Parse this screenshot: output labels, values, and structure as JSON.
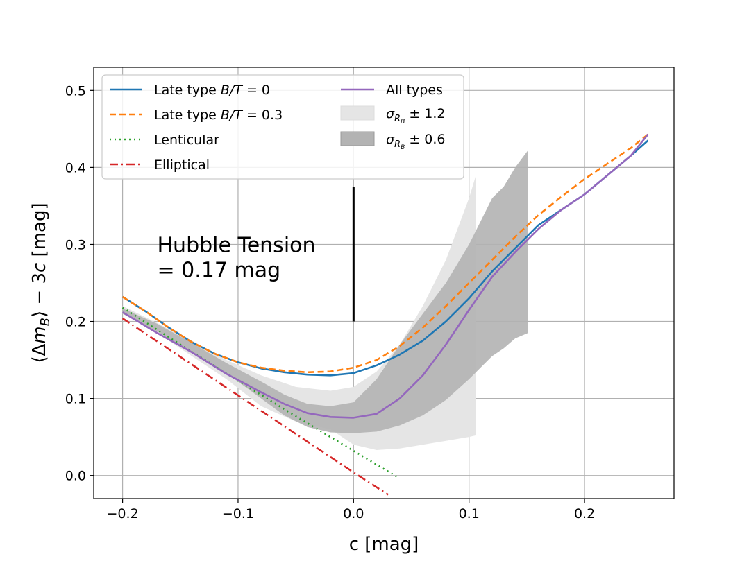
{
  "chart_data": {
    "type": "line",
    "title": "",
    "xlabel": "c [mag]",
    "ylabel_parts": [
      "⟨Δ",
      "m",
      "B",
      "⟩ − 3",
      "c",
      " [mag]"
    ],
    "xlim": [
      -0.225,
      0.2775
    ],
    "ylim": [
      -0.03,
      0.53
    ],
    "grid": true,
    "xticks": [
      -0.2,
      -0.1,
      0.0,
      0.1,
      0.2
    ],
    "xtick_labels": [
      "−0.2",
      "−0.1",
      "0.0",
      "0.1",
      "0.2"
    ],
    "yticks": [
      0.0,
      0.1,
      0.2,
      0.3,
      0.4,
      0.5
    ],
    "ytick_labels": [
      "0.0",
      "0.1",
      "0.2",
      "0.3",
      "0.4",
      "0.5"
    ],
    "legend_location": "upper-left",
    "bands": [
      {
        "name": "band_12",
        "label_parts": [
          "σ",
          "R",
          "B",
          " ± 1.2"
        ],
        "color": "#e5e5e5",
        "x": [
          -0.2,
          -0.17,
          -0.14,
          -0.11,
          -0.08,
          -0.05,
          -0.02,
          0.0,
          0.02,
          0.04,
          0.06,
          0.08,
          0.1,
          0.106
        ],
        "upper": [
          0.22,
          0.198,
          0.175,
          0.15,
          0.13,
          0.115,
          0.11,
          0.115,
          0.135,
          0.17,
          0.22,
          0.28,
          0.36,
          0.39
        ],
        "lower": [
          0.21,
          0.185,
          0.155,
          0.125,
          0.09,
          0.07,
          0.06,
          0.04,
          0.033,
          0.035,
          0.04,
          0.045,
          0.05,
          0.052
        ]
      },
      {
        "name": "band_06",
        "label_parts": [
          "σ",
          "R",
          "B",
          " ± 0.6"
        ],
        "color": "#b3b3b3",
        "x": [
          -0.2,
          -0.17,
          -0.14,
          -0.11,
          -0.08,
          -0.06,
          -0.04,
          -0.02,
          0.0,
          0.02,
          0.04,
          0.06,
          0.08,
          0.1,
          0.12,
          0.13,
          0.14,
          0.151
        ],
        "upper": [
          0.217,
          0.197,
          0.172,
          0.146,
          0.122,
          0.105,
          0.093,
          0.09,
          0.095,
          0.125,
          0.17,
          0.21,
          0.25,
          0.3,
          0.36,
          0.375,
          0.4,
          0.422
        ],
        "lower": [
          0.21,
          0.187,
          0.16,
          0.133,
          0.1,
          0.078,
          0.063,
          0.056,
          0.055,
          0.057,
          0.065,
          0.078,
          0.098,
          0.125,
          0.155,
          0.165,
          0.178,
          0.185
        ]
      }
    ],
    "series": [
      {
        "name": "late_bt0",
        "label_prefix": "Late type ",
        "label_math": "B/T",
        "label_suffix": " = 0",
        "color": "#1f77b4",
        "dash": "",
        "x": [
          -0.2,
          -0.18,
          -0.16,
          -0.14,
          -0.12,
          -0.1,
          -0.08,
          -0.06,
          -0.04,
          -0.02,
          0.0,
          0.02,
          0.04,
          0.06,
          0.08,
          0.1,
          0.12,
          0.14,
          0.16,
          0.18,
          0.2,
          0.22,
          0.24,
          0.255
        ],
        "y": [
          0.232,
          0.213,
          0.192,
          0.173,
          0.158,
          0.147,
          0.139,
          0.134,
          0.131,
          0.13,
          0.133,
          0.143,
          0.157,
          0.175,
          0.2,
          0.23,
          0.265,
          0.295,
          0.325,
          0.345,
          0.365,
          0.39,
          0.415,
          0.435
        ]
      },
      {
        "name": "late_bt03",
        "label_prefix": "Late type ",
        "label_math": "B/T",
        "label_suffix": " = 0.3",
        "color": "#ff7f0e",
        "dash": "9,5",
        "x": [
          -0.2,
          -0.18,
          -0.16,
          -0.14,
          -0.12,
          -0.1,
          -0.08,
          -0.06,
          -0.04,
          -0.02,
          0.0,
          0.02,
          0.04,
          0.06,
          0.08,
          0.1,
          0.12,
          0.14,
          0.16,
          0.18,
          0.2,
          0.22,
          0.24,
          0.255
        ],
        "y": [
          0.232,
          0.213,
          0.192,
          0.173,
          0.158,
          0.147,
          0.14,
          0.136,
          0.134,
          0.135,
          0.14,
          0.15,
          0.168,
          0.192,
          0.22,
          0.25,
          0.28,
          0.31,
          0.338,
          0.362,
          0.385,
          0.405,
          0.425,
          0.443
        ]
      },
      {
        "name": "lenticular",
        "label_prefix": "Lenticular",
        "label_math": "",
        "label_suffix": "",
        "color": "#2ca02c",
        "dash": "2,5",
        "x": [
          -0.2,
          -0.15,
          -0.1,
          -0.05,
          0.0,
          0.038
        ],
        "y": [
          0.218,
          0.17,
          0.123,
          0.077,
          0.032,
          -0.002
        ]
      },
      {
        "name": "elliptical",
        "label_prefix": "Elliptical",
        "label_math": "",
        "label_suffix": "",
        "color": "#d62728",
        "dash": "12,5,2,5",
        "x": [
          -0.2,
          -0.15,
          -0.1,
          -0.05,
          0.0,
          0.03
        ],
        "y": [
          0.204,
          0.154,
          0.104,
          0.054,
          0.004,
          -0.025
        ]
      },
      {
        "name": "all_types",
        "label_prefix": "All types",
        "label_math": "",
        "label_suffix": "",
        "color": "#9467bd",
        "dash": "",
        "x": [
          -0.2,
          -0.17,
          -0.14,
          -0.11,
          -0.08,
          -0.06,
          -0.04,
          -0.02,
          0.0,
          0.02,
          0.04,
          0.06,
          0.08,
          0.1,
          0.12,
          0.14,
          0.16,
          0.18,
          0.2,
          0.22,
          0.24,
          0.255
        ],
        "y": [
          0.212,
          0.185,
          0.16,
          0.132,
          0.108,
          0.093,
          0.081,
          0.076,
          0.075,
          0.08,
          0.1,
          0.13,
          0.17,
          0.215,
          0.258,
          0.29,
          0.32,
          0.345,
          0.365,
          0.39,
          0.415,
          0.443
        ]
      }
    ],
    "annotation": {
      "text_line1": "Hubble Tension",
      "text_line2": "= 0.17 mag",
      "x": -0.17,
      "y": 0.29,
      "bar": {
        "x": 0.0,
        "y0": 0.2,
        "y1": 0.375
      }
    }
  }
}
